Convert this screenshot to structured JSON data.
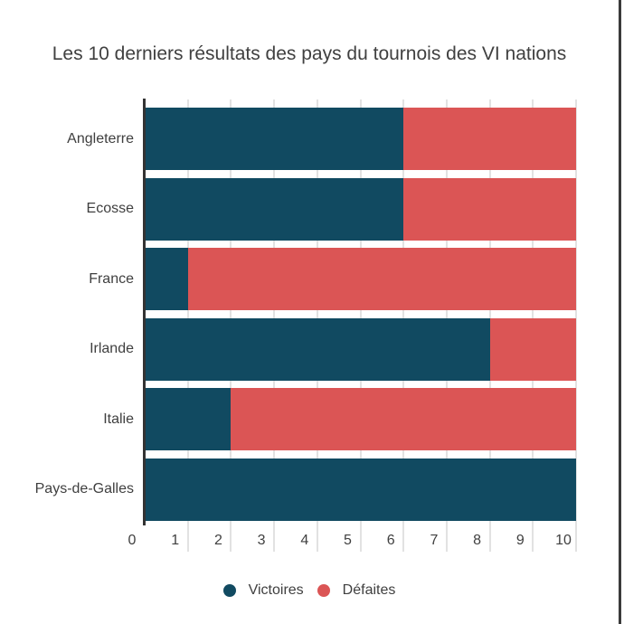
{
  "title": "Les 10 derniers résultats des pays du tournois des VI nations",
  "chart_data": {
    "type": "bar",
    "orientation": "horizontal",
    "stacked": true,
    "title": "Les 10 derniers résultats des pays du tournois des VI nations",
    "categories": [
      "Angleterre",
      "Ecosse",
      "France",
      "Irlande",
      "Italie",
      "Pays-de-Galles"
    ],
    "series": [
      {
        "name": "Victoires",
        "color": "#114a61",
        "values": [
          6,
          6,
          1,
          8,
          2,
          10
        ]
      },
      {
        "name": "Défaites",
        "color": "#db5555",
        "values": [
          4,
          4,
          9,
          2,
          8,
          0
        ]
      }
    ],
    "xlabel": "",
    "ylabel": "",
    "xlim": [
      0,
      10
    ],
    "x_ticks": [
      0,
      1,
      2,
      3,
      4,
      5,
      6,
      7,
      8,
      9,
      10
    ],
    "grid": true,
    "legend_position": "bottom"
  },
  "style": {
    "grid_color": "#e2e2e2",
    "axis_color": "#333333",
    "text_color": "#404040",
    "frame_border_color": "#3b3b3b"
  }
}
